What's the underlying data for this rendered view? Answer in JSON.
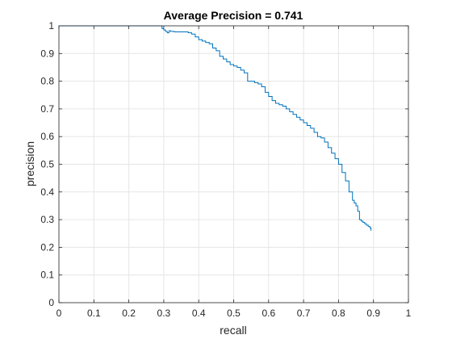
{
  "chart_data": {
    "type": "line",
    "title": "Average Precision = 0.741",
    "xlabel": "recall",
    "ylabel": "precision",
    "xlim": [
      0,
      1
    ],
    "ylim": [
      0,
      1
    ],
    "xticks": [
      "0",
      "0.1",
      "0.2",
      "0.3",
      "0.4",
      "0.5",
      "0.6",
      "0.7",
      "0.8",
      "0.9",
      "1"
    ],
    "yticks": [
      "0",
      "0.1",
      "0.2",
      "0.3",
      "0.4",
      "0.5",
      "0.6",
      "0.7",
      "0.8",
      "0.9",
      "1"
    ],
    "grid": true,
    "line_color": "#0072BD",
    "series": [
      {
        "x": [
          0,
          0.29,
          0.295,
          0.3,
          0.305,
          0.31,
          0.315,
          0.32,
          0.33,
          0.35,
          0.37,
          0.38,
          0.39,
          0.4,
          0.41,
          0.42,
          0.43,
          0.44,
          0.45,
          0.46,
          0.47,
          0.48,
          0.49,
          0.5,
          0.51,
          0.52,
          0.53,
          0.54,
          0.55,
          0.56,
          0.57,
          0.58,
          0.59,
          0.6,
          0.61,
          0.62,
          0.63,
          0.64,
          0.65,
          0.66,
          0.67,
          0.68,
          0.69,
          0.7,
          0.71,
          0.72,
          0.73,
          0.74,
          0.75,
          0.76,
          0.77,
          0.78,
          0.79,
          0.8,
          0.81,
          0.82,
          0.83,
          0.84,
          0.845,
          0.85,
          0.855,
          0.86,
          0.865,
          0.87,
          0.875,
          0.88,
          0.885,
          0.89,
          0.893
        ],
        "y": [
          1,
          1,
          0.99,
          0.985,
          0.98,
          0.975,
          0.982,
          0.98,
          0.978,
          0.978,
          0.975,
          0.97,
          0.96,
          0.95,
          0.945,
          0.94,
          0.935,
          0.92,
          0.91,
          0.89,
          0.88,
          0.87,
          0.86,
          0.855,
          0.85,
          0.84,
          0.83,
          0.8,
          0.8,
          0.795,
          0.79,
          0.78,
          0.76,
          0.745,
          0.73,
          0.72,
          0.715,
          0.71,
          0.7,
          0.69,
          0.68,
          0.67,
          0.66,
          0.65,
          0.64,
          0.63,
          0.615,
          0.6,
          0.595,
          0.58,
          0.56,
          0.54,
          0.52,
          0.5,
          0.47,
          0.44,
          0.4,
          0.37,
          0.36,
          0.35,
          0.33,
          0.3,
          0.295,
          0.29,
          0.285,
          0.28,
          0.275,
          0.27,
          0.26
        ]
      }
    ]
  }
}
